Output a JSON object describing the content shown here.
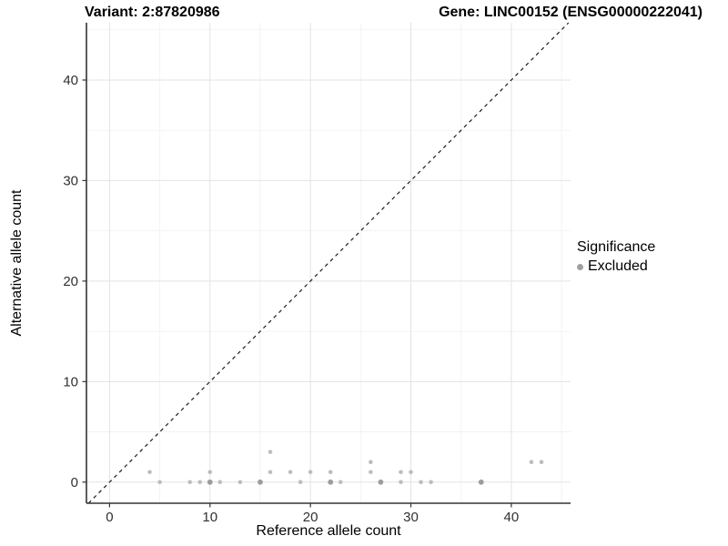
{
  "header": {
    "title_left": "Variant: 2:87820986",
    "title_right": "Gene: LINC00152 (ENSG00000222041)"
  },
  "chart_data": {
    "type": "scatter",
    "xlabel": "Reference allele count",
    "ylabel": "Alternative allele count",
    "xlim": [
      -2.3,
      45.9
    ],
    "ylim": [
      -2.1,
      45.7
    ],
    "x_ticks": [
      0,
      10,
      20,
      30,
      40
    ],
    "y_ticks": [
      0,
      10,
      20,
      30,
      40
    ],
    "x_minor_ticks": [
      5,
      15,
      25,
      35,
      45
    ],
    "y_minor_ticks": [
      5,
      15,
      25,
      35,
      45
    ],
    "grid": true,
    "identity_line": {
      "style": "dashed",
      "slope": 1,
      "intercept": 0,
      "color": "#1a1a1a"
    },
    "series": [
      {
        "name": "Excluded",
        "color": "#bdbdbd",
        "points": [
          [
            4,
            1
          ],
          [
            5,
            0
          ],
          [
            8,
            0
          ],
          [
            9,
            0
          ],
          [
            10,
            1
          ],
          [
            11,
            0
          ],
          [
            13,
            0
          ],
          [
            16,
            1
          ],
          [
            16,
            3
          ],
          [
            18,
            1
          ],
          [
            19,
            0
          ],
          [
            20,
            1
          ],
          [
            22,
            1
          ],
          [
            23,
            0
          ],
          [
            26,
            1
          ],
          [
            26,
            2
          ],
          [
            29,
            0
          ],
          [
            29,
            1
          ],
          [
            30,
            1
          ],
          [
            31,
            0
          ],
          [
            32,
            0
          ],
          [
            42,
            2
          ],
          [
            43,
            2
          ]
        ],
        "overlap_color": "#9c9c9c",
        "overlap_points": [
          [
            10,
            0
          ],
          [
            15,
            0
          ],
          [
            22,
            0
          ],
          [
            27,
            0
          ],
          [
            37,
            0
          ]
        ]
      }
    ],
    "legend": {
      "position": "right",
      "title": "Significance",
      "items": [
        {
          "label": "Excluded",
          "color": "#a0a0a0"
        }
      ]
    },
    "colors": {
      "grid_major": "#e3e3e3",
      "grid_minor": "#f1f1f1",
      "axis_line": "#333333",
      "tick_label": "#303030"
    }
  }
}
